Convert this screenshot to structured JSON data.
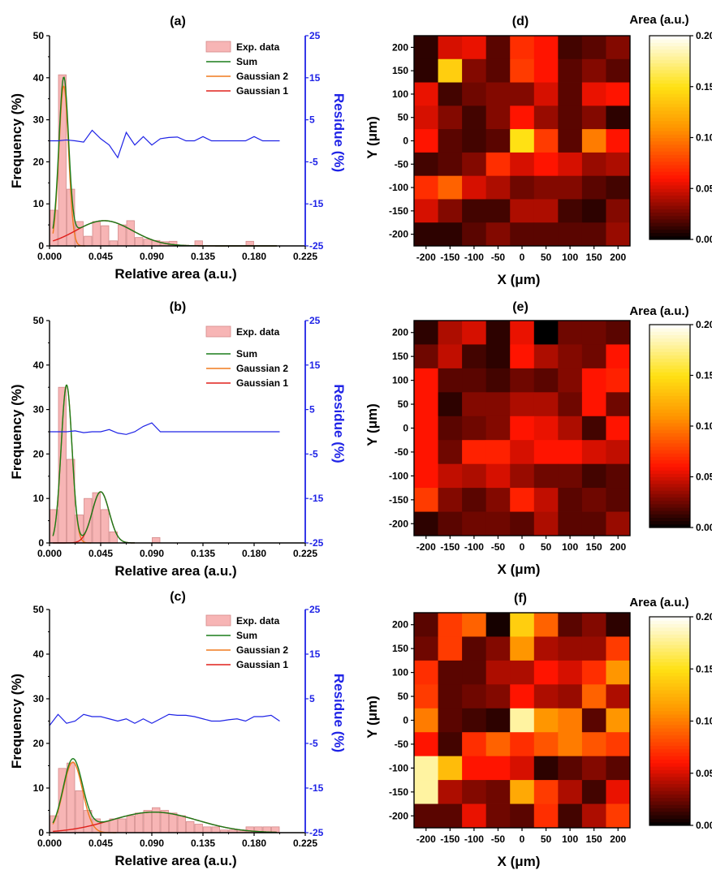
{
  "chart_data": [
    {
      "id": "a",
      "type": "bar",
      "panel_label": "(a)",
      "xlabel": "Relative area (a.u.)",
      "ylabel": "Frequency (%)",
      "y2label": "Residue (%)",
      "xlim": [
        0,
        0.225
      ],
      "ylim": [
        0,
        50
      ],
      "y2lim": [
        -25,
        25
      ],
      "xticks": [
        "0.000",
        "0.045",
        "0.090",
        "0.135",
        "0.180",
        "0.225"
      ],
      "yticks": [
        "0",
        "10",
        "20",
        "30",
        "40",
        "50"
      ],
      "y2ticks": [
        "-25",
        "-15",
        "-5",
        "5",
        "15",
        "25"
      ],
      "legend_position": "top-right",
      "legend": [
        "Exp. data",
        "Sum",
        "Gaussian 2",
        "Gaussian 1"
      ],
      "bins": {
        "x_start": 0.0,
        "width": 0.0075,
        "values": [
          8.5,
          40.7,
          13.5,
          5.8,
          2.3,
          5.8,
          4.8,
          1.2,
          5.0,
          6.0,
          2.0,
          1.6,
          1.3,
          1.0,
          1.1,
          0.0,
          0.0,
          1.2,
          0.0,
          0.0,
          0.0,
          0.0,
          0.0,
          1.1
        ]
      },
      "gaussians": [
        {
          "name": "Gaussian 1",
          "amp": 6.0,
          "mu": 0.048,
          "sigma": 0.025
        },
        {
          "name": "Gaussian 2",
          "amp": 38.0,
          "mu": 0.0125,
          "sigma": 0.0042
        }
      ],
      "residue": {
        "x": [
          0.0,
          0.0075,
          0.015,
          0.0225,
          0.03,
          0.0375,
          0.045,
          0.0525,
          0.06,
          0.0675,
          0.075,
          0.0825,
          0.09,
          0.0975,
          0.105,
          0.1125,
          0.12,
          0.1275,
          0.135,
          0.1425,
          0.15,
          0.1575,
          0.165,
          0.1725,
          0.18,
          0.1875,
          0.195,
          0.2025
        ],
        "y": [
          0.0,
          0.0,
          0.2,
          0.0,
          -0.3,
          2.5,
          0.5,
          -1.0,
          -4.0,
          2.0,
          -1.0,
          1.0,
          -1.0,
          0.5,
          0.8,
          0.9,
          0.0,
          0.0,
          1.0,
          0.0,
          0.0,
          0.0,
          0.0,
          0.0,
          1.0,
          0.0,
          0.0,
          0.0
        ]
      }
    },
    {
      "id": "b",
      "type": "bar",
      "panel_label": "(b)",
      "xlabel": "Relative area (a.u.)",
      "ylabel": "Frequency (%)",
      "y2label": "Residue (%)",
      "xlim": [
        0,
        0.225
      ],
      "ylim": [
        0,
        50
      ],
      "y2lim": [
        -25,
        25
      ],
      "xticks": [
        "0.000",
        "0.045",
        "0.090",
        "0.135",
        "0.180",
        "0.225"
      ],
      "yticks": [
        "0",
        "10",
        "20",
        "30",
        "40",
        "50"
      ],
      "y2ticks": [
        "-25",
        "-15",
        "-5",
        "5",
        "15",
        "25"
      ],
      "legend_position": "top-right",
      "legend": [
        "Exp. data",
        "Sum",
        "Gaussian 2",
        "Gaussian 1"
      ],
      "bins": {
        "x_start": 0.0,
        "width": 0.0075,
        "values": [
          7.5,
          35.0,
          18.8,
          6.3,
          10.0,
          11.3,
          7.5,
          2.5,
          0.0,
          0.0,
          0.0,
          0.0,
          1.2
        ]
      },
      "gaussians": [
        {
          "name": "Gaussian 1",
          "amp": 11.5,
          "mu": 0.045,
          "sigma": 0.0075
        },
        {
          "name": "Gaussian 2",
          "amp": 35.5,
          "mu": 0.015,
          "sigma": 0.0048
        }
      ],
      "residue": {
        "x": [
          0.0,
          0.0075,
          0.015,
          0.0225,
          0.03,
          0.0375,
          0.045,
          0.0525,
          0.06,
          0.0675,
          0.075,
          0.0825,
          0.09,
          0.0975,
          0.105,
          0.1125,
          0.12,
          0.1275,
          0.135,
          0.1425,
          0.15,
          0.1575,
          0.165,
          0.1725,
          0.18,
          0.1875,
          0.195,
          0.2025
        ],
        "y": [
          0.0,
          0.0,
          0.0,
          0.2,
          -0.2,
          0.0,
          0.0,
          0.5,
          -0.3,
          -0.6,
          0.0,
          1.2,
          2.0,
          0.0,
          0.0,
          0.0,
          0.0,
          0.0,
          0.0,
          0.0,
          0.0,
          0.0,
          0.0,
          0.0,
          0.0,
          0.0,
          0.0,
          0.0
        ]
      }
    },
    {
      "id": "c",
      "type": "bar",
      "panel_label": "(c)",
      "xlabel": "Relative area (a.u.)",
      "ylabel": "Frequency (%)",
      "y2label": "Residue (%)",
      "xlim": [
        0,
        0.225
      ],
      "ylim": [
        0,
        50
      ],
      "y2lim": [
        -25,
        25
      ],
      "xticks": [
        "0.000",
        "0.045",
        "0.090",
        "0.135",
        "0.180",
        "0.225"
      ],
      "yticks": [
        "0",
        "10",
        "20",
        "30",
        "40",
        "50"
      ],
      "y2ticks": [
        "-25",
        "-15",
        "-5",
        "5",
        "15",
        "25"
      ],
      "legend_position": "top-right",
      "legend": [
        "Exp. data",
        "Sum",
        "Gaussian 2",
        "Gaussian 1"
      ],
      "bins": {
        "x_start": 0.0,
        "width": 0.0075,
        "values": [
          3.8,
          14.4,
          15.6,
          9.4,
          5.0,
          3.1,
          2.5,
          3.1,
          3.1,
          3.8,
          4.4,
          5.0,
          5.6,
          5.0,
          4.4,
          3.8,
          2.5,
          1.9,
          1.3,
          1.3,
          0.6,
          0.6,
          0.6,
          1.3,
          1.3,
          1.3,
          1.3
        ]
      },
      "gaussians": [
        {
          "name": "Gaussian 1",
          "amp": 4.6,
          "mu": 0.092,
          "sigma": 0.038
        },
        {
          "name": "Gaussian 2",
          "amp": 15.8,
          "mu": 0.0205,
          "sigma": 0.0085
        }
      ],
      "residue": {
        "x": [
          0.0,
          0.0075,
          0.015,
          0.0225,
          0.03,
          0.0375,
          0.045,
          0.0525,
          0.06,
          0.0675,
          0.075,
          0.0825,
          0.09,
          0.0975,
          0.105,
          0.1125,
          0.12,
          0.1275,
          0.135,
          0.1425,
          0.15,
          0.1575,
          0.165,
          0.1725,
          0.18,
          0.1875,
          0.195,
          0.2025
        ],
        "y": [
          -1.0,
          1.5,
          -0.5,
          0.0,
          1.5,
          1.0,
          1.0,
          0.5,
          0.0,
          0.5,
          -0.5,
          0.5,
          -0.5,
          0.5,
          1.5,
          1.3,
          1.3,
          1.0,
          0.5,
          0.0,
          0.0,
          0.3,
          0.5,
          0.0,
          1.0,
          1.0,
          1.3,
          0.0
        ]
      }
    },
    {
      "id": "d",
      "type": "heatmap",
      "panel_label": "(d)",
      "xlabel": "X (μm)",
      "ylabel": "Y (μm)",
      "colorbar_label": "Area (a.u.)",
      "colorbar_ticks": [
        "0.00",
        "0.05",
        "0.10",
        "0.15",
        "0.20"
      ],
      "zlim": [
        0,
        0.2
      ],
      "xticks": [
        "-200",
        "-150",
        "-100",
        "-50",
        "0",
        "50",
        "100",
        "150",
        "200"
      ],
      "yticks": [
        "200",
        "150",
        "100",
        "50",
        "0",
        "-50",
        "-100",
        "-150",
        "-200"
      ],
      "z": [
        [
          0.01,
          0.05,
          0.055,
          0.02,
          0.07,
          0.06,
          0.015,
          0.02,
          0.03
        ],
        [
          0.01,
          0.14,
          0.03,
          0.02,
          0.075,
          0.06,
          0.02,
          0.03,
          0.02
        ],
        [
          0.055,
          0.015,
          0.025,
          0.03,
          0.03,
          0.05,
          0.02,
          0.055,
          0.06
        ],
        [
          0.05,
          0.03,
          0.015,
          0.03,
          0.06,
          0.035,
          0.02,
          0.03,
          0.01
        ],
        [
          0.06,
          0.02,
          0.015,
          0.02,
          0.15,
          0.075,
          0.02,
          0.1,
          0.06
        ],
        [
          0.015,
          0.02,
          0.03,
          0.07,
          0.05,
          0.06,
          0.05,
          0.035,
          0.04
        ],
        [
          0.07,
          0.09,
          0.05,
          0.04,
          0.025,
          0.03,
          0.03,
          0.02,
          0.015
        ],
        [
          0.05,
          0.03,
          0.015,
          0.015,
          0.04,
          0.04,
          0.015,
          0.01,
          0.03
        ],
        [
          0.01,
          0.01,
          0.02,
          0.03,
          0.02,
          0.02,
          0.02,
          0.02,
          0.035
        ]
      ]
    },
    {
      "id": "e",
      "type": "heatmap",
      "panel_label": "(e)",
      "xlabel": "X (μm)",
      "ylabel": "Y (μm)",
      "colorbar_label": "Area (a.u.)",
      "colorbar_ticks": [
        "0.00",
        "0.05",
        "0.10",
        "0.15",
        "0.20"
      ],
      "zlim": [
        0,
        0.2
      ],
      "xticks": [
        "-200",
        "-150",
        "-100",
        "-50",
        "0",
        "50",
        "100",
        "150",
        "200"
      ],
      "yticks": [
        "200",
        "150",
        "100",
        "50",
        "0",
        "-50",
        "-100",
        "-150",
        "-200"
      ],
      "z": [
        [
          0.01,
          0.04,
          0.05,
          0.01,
          0.055,
          0.0,
          0.025,
          0.025,
          0.02
        ],
        [
          0.025,
          0.045,
          0.015,
          0.01,
          0.06,
          0.04,
          0.03,
          0.025,
          0.06
        ],
        [
          0.06,
          0.02,
          0.02,
          0.015,
          0.025,
          0.02,
          0.03,
          0.06,
          0.065
        ],
        [
          0.06,
          0.01,
          0.03,
          0.03,
          0.04,
          0.04,
          0.025,
          0.06,
          0.025
        ],
        [
          0.06,
          0.02,
          0.025,
          0.03,
          0.06,
          0.055,
          0.04,
          0.015,
          0.06
        ],
        [
          0.06,
          0.025,
          0.065,
          0.065,
          0.05,
          0.06,
          0.06,
          0.05,
          0.045
        ],
        [
          0.06,
          0.045,
          0.04,
          0.05,
          0.035,
          0.025,
          0.025,
          0.015,
          0.02
        ],
        [
          0.075,
          0.03,
          0.02,
          0.03,
          0.065,
          0.045,
          0.02,
          0.025,
          0.02
        ],
        [
          0.01,
          0.02,
          0.025,
          0.025,
          0.02,
          0.04,
          0.02,
          0.02,
          0.035
        ]
      ]
    },
    {
      "id": "f",
      "type": "heatmap",
      "panel_label": "(f)",
      "xlabel": "X (μm)",
      "ylabel": "Y (μm)",
      "colorbar_label": "Area (a.u.)",
      "colorbar_ticks": [
        "0.00",
        "0.05",
        "0.10",
        "0.15",
        "0.20"
      ],
      "zlim": [
        0,
        0.2
      ],
      "xticks": [
        "-200",
        "-150",
        "-100",
        "-50",
        "0",
        "50",
        "100",
        "150",
        "200"
      ],
      "yticks": [
        "200",
        "150",
        "100",
        "50",
        "0",
        "-50",
        "-100",
        "-150",
        "-200"
      ],
      "z": [
        [
          0.02,
          0.075,
          0.09,
          0.005,
          0.14,
          0.09,
          0.02,
          0.03,
          0.01
        ],
        [
          0.025,
          0.075,
          0.02,
          0.03,
          0.11,
          0.04,
          0.035,
          0.035,
          0.075
        ],
        [
          0.07,
          0.02,
          0.02,
          0.04,
          0.04,
          0.06,
          0.05,
          0.07,
          0.11
        ],
        [
          0.075,
          0.02,
          0.025,
          0.03,
          0.06,
          0.04,
          0.035,
          0.09,
          0.04
        ],
        [
          0.1,
          0.02,
          0.015,
          0.01,
          0.18,
          0.11,
          0.1,
          0.02,
          0.11
        ],
        [
          0.06,
          0.015,
          0.07,
          0.09,
          0.07,
          0.085,
          0.1,
          0.085,
          0.075
        ],
        [
          0.18,
          0.13,
          0.06,
          0.06,
          0.05,
          0.01,
          0.02,
          0.03,
          0.02
        ],
        [
          0.18,
          0.04,
          0.03,
          0.025,
          0.12,
          0.075,
          0.04,
          0.015,
          0.055
        ],
        [
          0.02,
          0.02,
          0.055,
          0.025,
          0.02,
          0.07,
          0.015,
          0.04,
          0.075
        ]
      ]
    }
  ]
}
